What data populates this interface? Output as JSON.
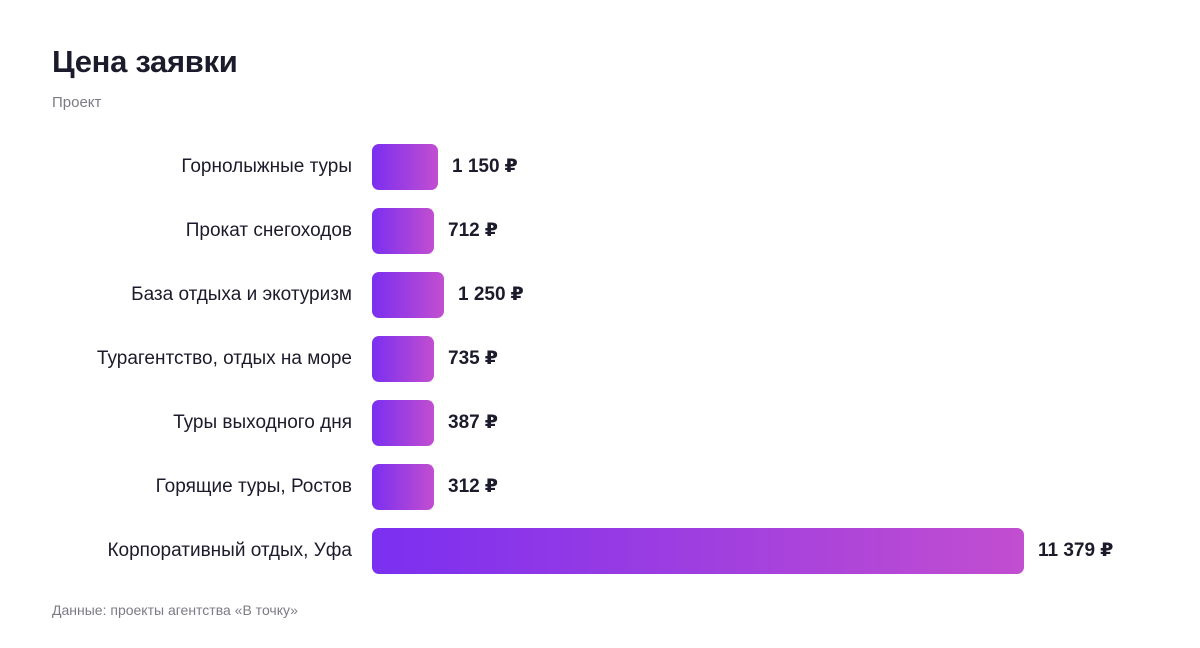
{
  "title": "Цена заявки",
  "subtitle": "Проект",
  "footer": "Данные: проекты агентства «В точку»",
  "colors": {
    "bar_gradient_start": "#7b2ff0",
    "bar_gradient_end": "#c24ed0",
    "text": "#1c1b2b",
    "muted": "#7b7b85"
  },
  "chart_data": {
    "type": "bar",
    "orientation": "horizontal",
    "title": "Цена заявки",
    "subtitle": "Проект",
    "currency": "₽",
    "categories": [
      "Горнолыжные туры",
      "Прокат снегоходов",
      "База отдыха и экотуризм",
      "Турагентство, отдых на море",
      "Туры выходного дня",
      "Горящие туры, Ростов",
      "Корпоративный отдых, Уфа"
    ],
    "values": [
      1150,
      712,
      1250,
      735,
      387,
      312,
      11379
    ],
    "value_labels": [
      "1 150",
      "712",
      "1 250",
      "735",
      "387",
      "312",
      "11 379"
    ],
    "xlim": [
      0,
      11379
    ],
    "grid": false,
    "legend": "none"
  }
}
